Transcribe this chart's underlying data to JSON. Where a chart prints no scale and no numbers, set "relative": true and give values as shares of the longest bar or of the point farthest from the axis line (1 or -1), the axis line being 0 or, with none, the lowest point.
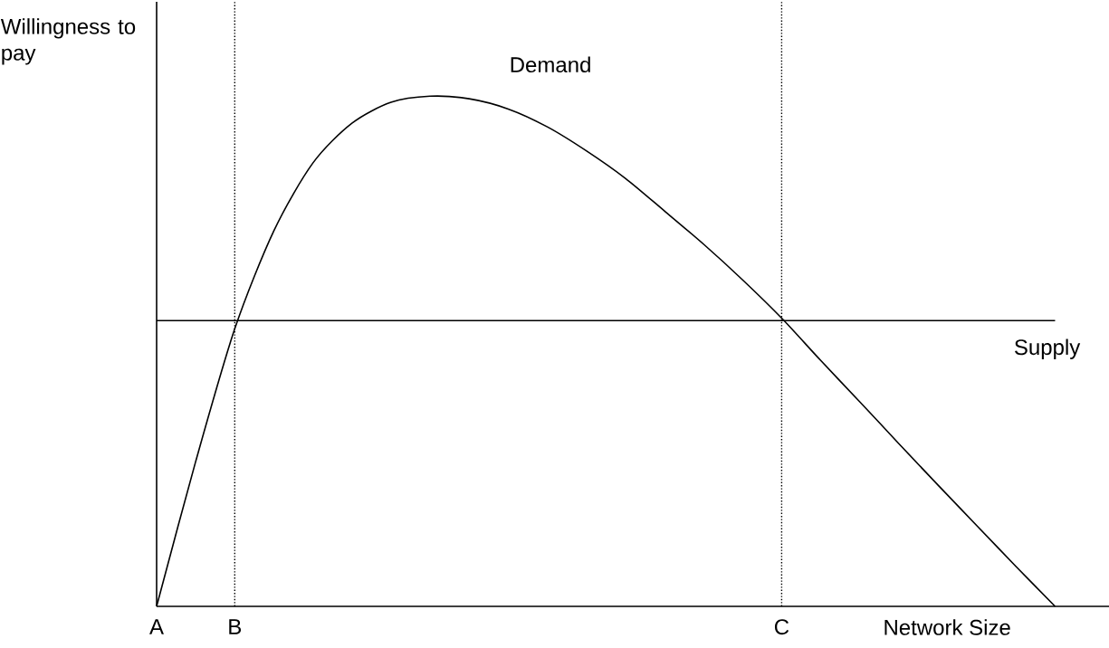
{
  "chart_data": {
    "type": "line",
    "relative": true,
    "xlabel": "Network Size",
    "ylabel": "Willingness to pay",
    "categories": [
      "A",
      null,
      "B",
      null,
      null,
      null,
      null,
      null,
      null,
      null,
      null,
      null,
      null,
      null,
      null,
      null,
      "C",
      null,
      null,
      null,
      null,
      null,
      null,
      null
    ],
    "series": [
      {
        "name": "Demand",
        "color": "#000000",
        "values": [
          0,
          0.284,
          0.544,
          0.736,
          0.869,
          0.947,
          0.988,
          1.0,
          0.995,
          0.975,
          0.94,
          0.893,
          0.839,
          0.775,
          0.71,
          0.64,
          0.565,
          0.482,
          0.401,
          0.319,
          0.238,
          0.158,
          0.078,
          0
        ]
      },
      {
        "name": "Supply",
        "color": "#000000",
        "values": [
          0.56,
          0.56,
          0.56,
          0.56,
          0.56,
          0.56,
          0.56,
          0.56,
          0.56,
          0.56,
          0.56,
          0.56,
          0.56,
          0.56,
          0.56,
          0.56,
          0.56,
          0.56,
          0.56,
          0.56,
          0.56,
          0.56,
          0.56,
          0.56
        ]
      }
    ],
    "ref_lines": [
      {
        "axis": "x",
        "value": "B",
        "line_style": "dotted"
      },
      {
        "axis": "x",
        "value": "C",
        "line_style": "dotted"
      }
    ],
    "grid": false,
    "marker": "none",
    "line_style": "solid"
  }
}
